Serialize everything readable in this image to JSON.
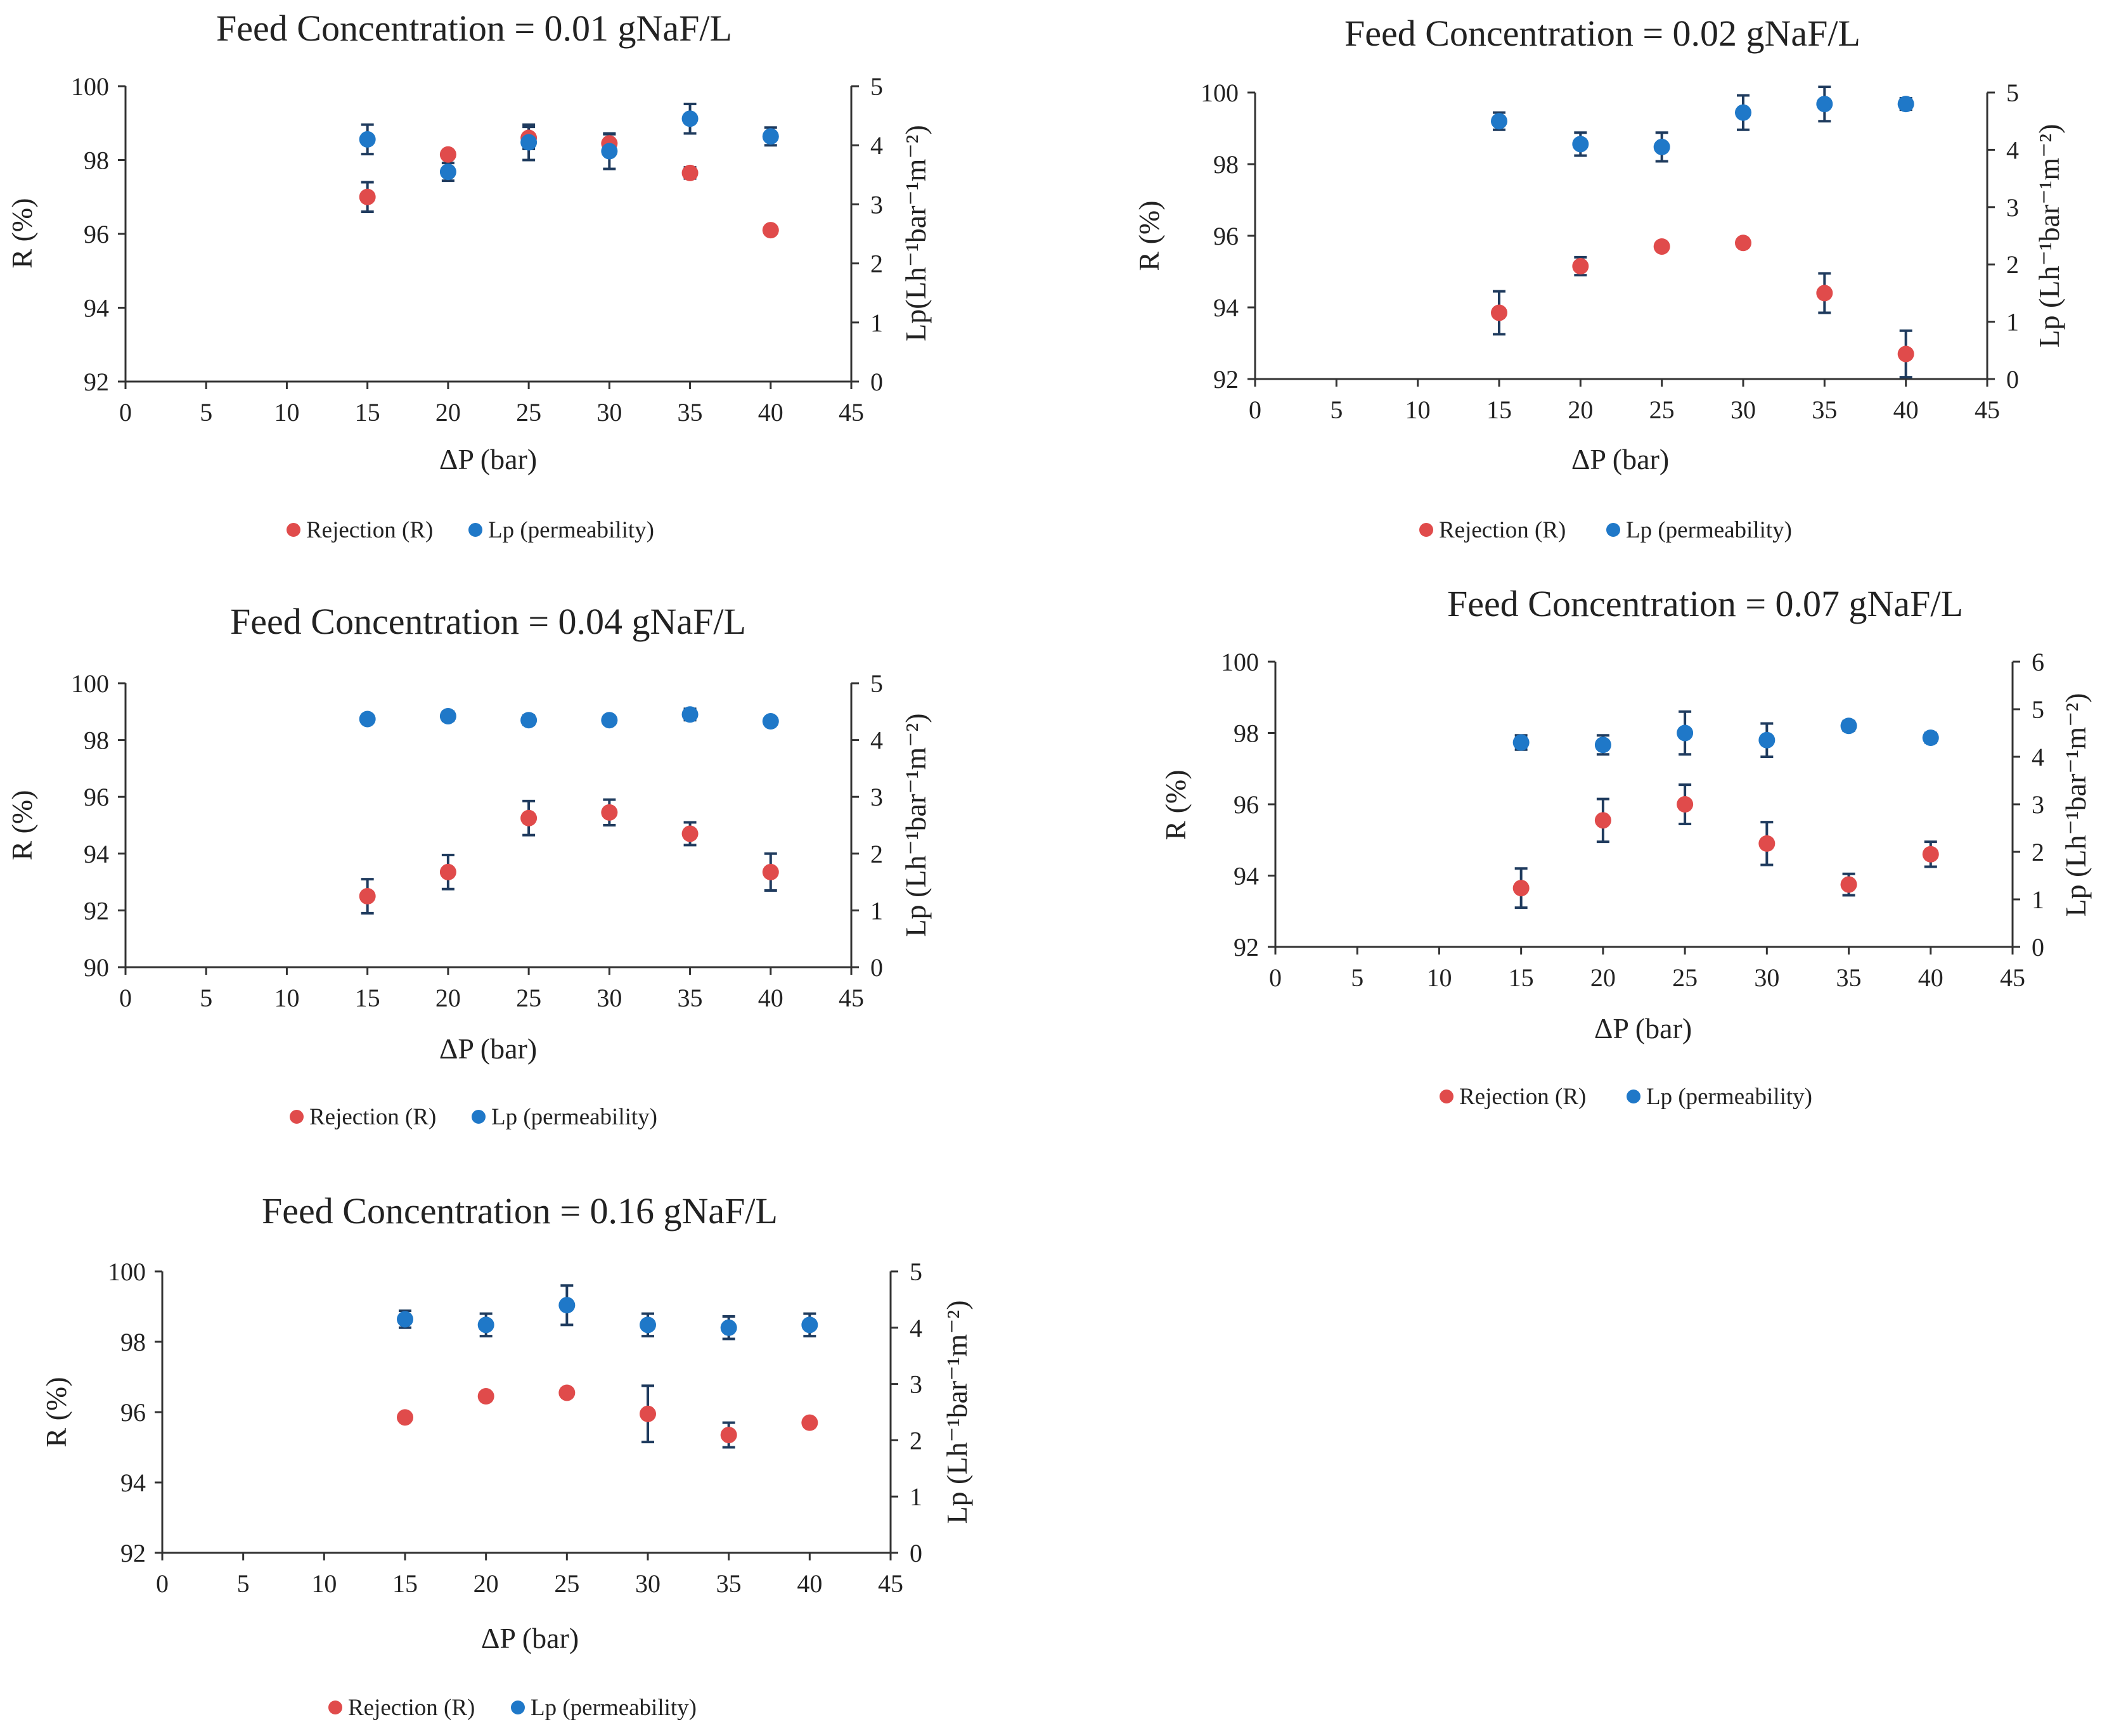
{
  "figure": {
    "legend_rejection": "Rejection (R)",
    "legend_permeability": "Lp (permeability)",
    "colors": {
      "rejection": "#e04b4b",
      "permeability": "#1f78c8",
      "axis": "#333333",
      "errorbar": "#1f3b5e"
    }
  },
  "chart_data": [
    {
      "type": "scatter",
      "title": "Feed Concentration  = 0.01 gNaF/L",
      "xlabel": "ΔP (bar)",
      "ylabel": "R (%)",
      "y2label": "Lp(Lh⁻¹bar⁻¹m⁻²)",
      "xlim": [
        0,
        45
      ],
      "xticks": [
        0,
        5,
        10,
        15,
        20,
        25,
        30,
        35,
        40,
        45
      ],
      "ylim": [
        92,
        100
      ],
      "yticks": [
        92,
        94,
        96,
        98,
        100
      ],
      "y2lim": [
        0,
        5
      ],
      "y2ticks": [
        0,
        1,
        2,
        3,
        4,
        5
      ],
      "legend": [
        "Rejection (R)",
        "Lp (permeability)"
      ],
      "series": [
        {
          "name": "Rejection (R)",
          "axis": "left",
          "x": [
            15,
            20,
            25,
            30,
            35,
            40
          ],
          "y": [
            97.0,
            98.15,
            98.6,
            98.45,
            97.65,
            96.1
          ],
          "err": [
            0.4,
            0.1,
            0.3,
            0.25,
            0.15,
            0.1
          ]
        },
        {
          "name": "Lp (permeability)",
          "axis": "right",
          "x": [
            15,
            20,
            25,
            30,
            35,
            40
          ],
          "y": [
            4.1,
            3.55,
            4.05,
            3.9,
            4.45,
            4.15
          ],
          "err": [
            0.25,
            0.15,
            0.3,
            0.3,
            0.25,
            0.15
          ]
        }
      ]
    },
    {
      "type": "scatter",
      "title": "Feed Concentration  = 0.02 gNaF/L",
      "xlabel": "ΔP (bar)",
      "ylabel": "R (%)",
      "y2label": "Lp (Lh⁻¹bar⁻¹m⁻²)",
      "xlim": [
        0,
        45
      ],
      "xticks": [
        0,
        5,
        10,
        15,
        20,
        25,
        30,
        35,
        40,
        45
      ],
      "ylim": [
        92,
        100
      ],
      "yticks": [
        92,
        94,
        96,
        98,
        100
      ],
      "y2lim": [
        0,
        5
      ],
      "y2ticks": [
        0,
        1,
        2,
        3,
        4,
        5
      ],
      "legend": [
        "Rejection (R)",
        "Lp (permeability)"
      ],
      "series": [
        {
          "name": "Rejection (R)",
          "axis": "left",
          "x": [
            15,
            20,
            25,
            30,
            35,
            40
          ],
          "y": [
            93.85,
            95.15,
            95.7,
            95.8,
            94.4,
            92.7
          ],
          "err": [
            0.6,
            0.25,
            0.1,
            0.1,
            0.55,
            0.65
          ]
        },
        {
          "name": "Lp (permeability)",
          "axis": "right",
          "x": [
            15,
            20,
            25,
            30,
            35,
            40
          ],
          "y": [
            4.5,
            4.1,
            4.05,
            4.65,
            4.8,
            4.8
          ],
          "err": [
            0.15,
            0.2,
            0.25,
            0.3,
            0.3,
            0.1
          ]
        }
      ]
    },
    {
      "type": "scatter",
      "title": "Feed Concentration  = 0.04 gNaF/L",
      "xlabel": "ΔP (bar)",
      "ylabel": "R (%)",
      "y2label": "Lp (Lh⁻¹bar⁻¹m⁻²)",
      "xlim": [
        0,
        45
      ],
      "xticks": [
        0,
        5,
        10,
        15,
        20,
        25,
        30,
        35,
        40,
        45
      ],
      "ylim": [
        90,
        100
      ],
      "yticks": [
        90,
        92,
        94,
        96,
        98,
        100
      ],
      "y2lim": [
        0,
        5
      ],
      "y2ticks": [
        0,
        1,
        2,
        3,
        4,
        5
      ],
      "legend": [
        "Rejection (R)",
        "Lp (permeability)"
      ],
      "series": [
        {
          "name": "Rejection (R)",
          "axis": "left",
          "x": [
            15,
            20,
            25,
            30,
            35,
            40
          ],
          "y": [
            92.5,
            93.35,
            95.25,
            95.45,
            94.7,
            93.35
          ],
          "err": [
            0.6,
            0.6,
            0.6,
            0.45,
            0.4,
            0.65
          ]
        },
        {
          "name": "Lp (permeability)",
          "axis": "right",
          "x": [
            15,
            20,
            25,
            30,
            35,
            40
          ],
          "y": [
            4.37,
            4.42,
            4.35,
            4.35,
            4.45,
            4.33
          ],
          "err": [
            0.06,
            0.08,
            0.08,
            0.06,
            0.1,
            0.06
          ]
        }
      ]
    },
    {
      "type": "scatter",
      "title": "Feed Concentration  = 0.07 gNaF/L",
      "xlabel": "ΔP (bar)",
      "ylabel": "R (%)",
      "y2label": "Lp (Lh⁻¹bar⁻¹m⁻²)",
      "xlim": [
        0,
        45
      ],
      "xticks": [
        0,
        5,
        10,
        15,
        20,
        25,
        30,
        35,
        40,
        45
      ],
      "ylim": [
        92,
        100
      ],
      "yticks": [
        92,
        94,
        96,
        98,
        100
      ],
      "y2lim": [
        0,
        6
      ],
      "y2ticks": [
        0,
        1,
        2,
        3,
        4,
        5,
        6
      ],
      "legend": [
        "Rejection (R)",
        "Lp (permeability)"
      ],
      "series": [
        {
          "name": "Rejection (R)",
          "axis": "left",
          "x": [
            15,
            20,
            25,
            30,
            35,
            40
          ],
          "y": [
            93.65,
            95.55,
            96.0,
            94.9,
            93.75,
            94.6
          ],
          "err": [
            0.55,
            0.6,
            0.55,
            0.6,
            0.3,
            0.35
          ]
        },
        {
          "name": "Lp (permeability)",
          "axis": "right",
          "x": [
            15,
            20,
            25,
            30,
            35,
            40
          ],
          "y": [
            4.3,
            4.25,
            4.5,
            4.35,
            4.65,
            4.4
          ],
          "err": [
            0.15,
            0.2,
            0.45,
            0.35,
            0.1,
            0.1
          ]
        }
      ]
    },
    {
      "type": "scatter",
      "title": "Feed Concentration  = 0.16 gNaF/L",
      "xlabel": "ΔP (bar)",
      "ylabel": "R (%)",
      "y2label": "Lp (Lh⁻¹bar⁻¹m⁻²)",
      "xlim": [
        0,
        45
      ],
      "xticks": [
        0,
        5,
        10,
        15,
        20,
        25,
        30,
        35,
        40,
        45
      ],
      "ylim": [
        92,
        100
      ],
      "yticks": [
        92,
        94,
        96,
        98,
        100
      ],
      "y2lim": [
        0,
        5
      ],
      "y2ticks": [
        0,
        1,
        2,
        3,
        4,
        5
      ],
      "legend": [
        "Rejection (R)",
        "Lp (permeability)"
      ],
      "series": [
        {
          "name": "Rejection (R)",
          "axis": "left",
          "x": [
            15,
            20,
            25,
            30,
            35,
            40
          ],
          "y": [
            95.85,
            96.45,
            96.55,
            95.95,
            95.35,
            95.7
          ],
          "err": [
            0.05,
            0.1,
            0.05,
            0.8,
            0.35,
            0.05
          ]
        },
        {
          "name": "Lp (permeability)",
          "axis": "right",
          "x": [
            15,
            20,
            25,
            30,
            35,
            40
          ],
          "y": [
            4.15,
            4.05,
            4.4,
            4.05,
            4.0,
            4.05
          ],
          "err": [
            0.15,
            0.2,
            0.35,
            0.2,
            0.2,
            0.2
          ]
        }
      ]
    }
  ]
}
